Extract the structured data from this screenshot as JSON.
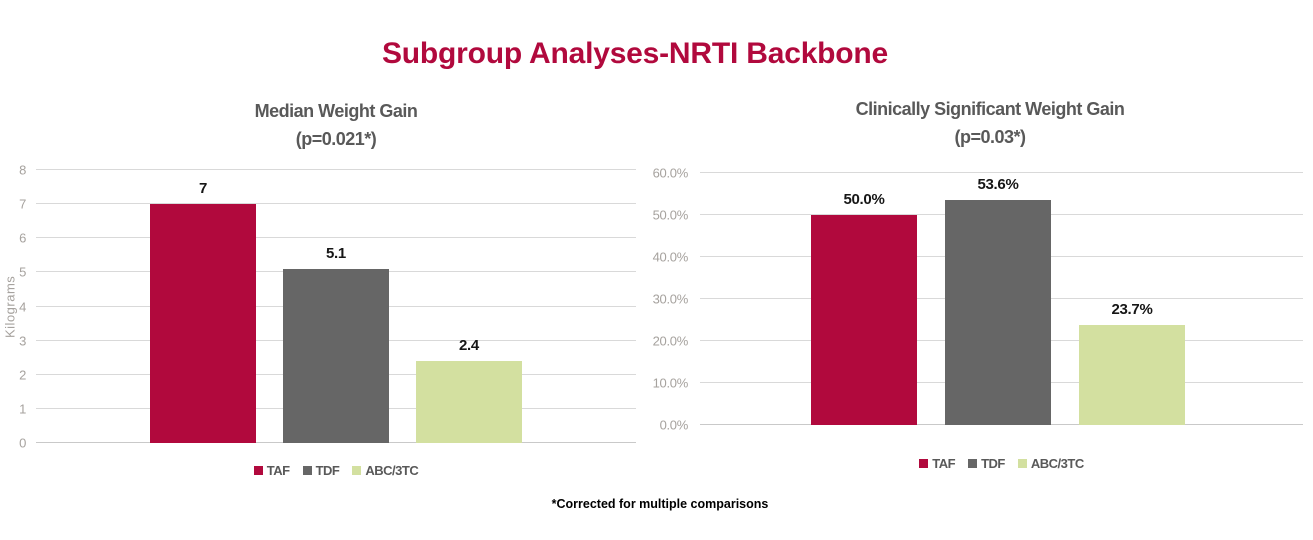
{
  "title": "Subgroup Analyses-NRTI Backbone",
  "footnote": "*Corrected for multiple comparisons",
  "colors": {
    "title_red": "#B1093D",
    "bar_taf": "#B1093D",
    "bar_tdf": "#666666",
    "bar_abc3tc": "#D3E0A0",
    "chart_title_gray": "#595959",
    "tick_gray": "#A6A29E",
    "gridline_gray": "#D9D9D9"
  },
  "chart_data": [
    {
      "type": "bar",
      "title": "Median Weight Gain",
      "subtitle": "(p=0.021*)",
      "xlabel": "",
      "ylabel": "Kilograms",
      "categories": [
        "TAF",
        "TDF",
        "ABC/3TC"
      ],
      "values": [
        7,
        5.1,
        2.4
      ],
      "value_labels": [
        "7",
        "5.1",
        "2.4"
      ],
      "series_colors": [
        "#B1093D",
        "#666666",
        "#D3E0A0"
      ],
      "ylim": [
        0,
        8
      ],
      "yticks": [
        0,
        1,
        2,
        3,
        4,
        5,
        6,
        7,
        8
      ],
      "ytick_labels": [
        "0",
        "1",
        "2",
        "3",
        "4",
        "5",
        "6",
        "7",
        "8"
      ],
      "grid": true,
      "legend_position": "bottom",
      "legend": [
        {
          "label": "TAF",
          "color": "#B1093D"
        },
        {
          "label": "TDF",
          "color": "#666666"
        },
        {
          "label": "ABC/3TC",
          "color": "#D3E0A0"
        }
      ]
    },
    {
      "type": "bar",
      "title": "Clinically Significant Weight Gain",
      "subtitle": "(p=0.03*)",
      "xlabel": "",
      "ylabel": "",
      "categories": [
        "TAF",
        "TDF",
        "ABC/3TC"
      ],
      "values": [
        50.0,
        53.6,
        23.7
      ],
      "value_labels": [
        "50.0%",
        "53.6%",
        "23.7%"
      ],
      "series_colors": [
        "#B1093D",
        "#666666",
        "#D3E0A0"
      ],
      "ylim": [
        0,
        60
      ],
      "yticks": [
        0,
        10,
        20,
        30,
        40,
        50,
        60
      ],
      "ytick_labels": [
        "0.0%",
        "10.0%",
        "20.0%",
        "30.0%",
        "40.0%",
        "50.0%",
        "60.0%"
      ],
      "grid": true,
      "legend_position": "bottom",
      "legend": [
        {
          "label": "TAF",
          "color": "#B1093D"
        },
        {
          "label": "TDF",
          "color": "#666666"
        },
        {
          "label": "ABC/3TC",
          "color": "#D3E0A0"
        }
      ]
    }
  ]
}
